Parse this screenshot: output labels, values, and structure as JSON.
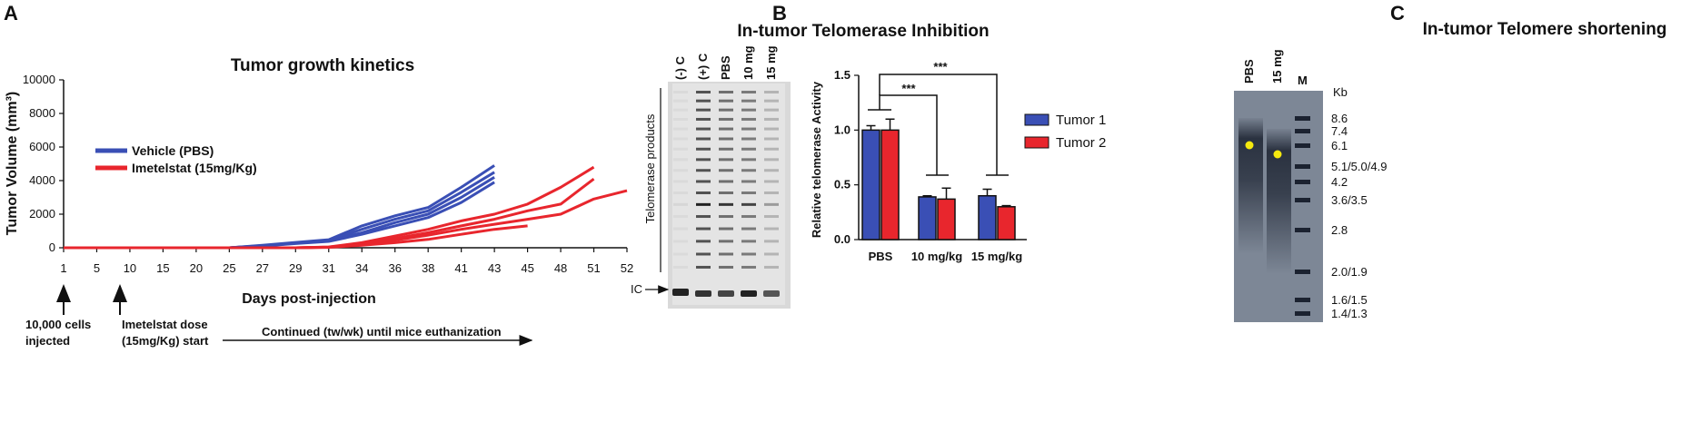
{
  "chart_data": [
    {
      "panel": "A",
      "type": "line",
      "title": "Tumor growth kinetics",
      "xlabel": "Days post-injection",
      "ylabel": "Tumor Volume (mm³)",
      "ylim": [
        0,
        10000
      ],
      "yticks": [
        0,
        2000,
        4000,
        6000,
        8000,
        10000
      ],
      "categories": [
        "1",
        "5",
        "10",
        "15",
        "20",
        "25",
        "27",
        "29",
        "31",
        "34",
        "36",
        "38",
        "41",
        "43",
        "45",
        "48",
        "51",
        "52"
      ],
      "series": [
        {
          "name": "Vehicle (PBS)",
          "color": "#3a4fb5",
          "lines": [
            [
              0,
              0,
              0,
              0,
              0,
              0,
              150,
              320,
              480,
              1300,
              1900,
              2400,
              3600,
              4900
            ],
            [
              0,
              0,
              0,
              0,
              0,
              0,
              130,
              290,
              430,
              1100,
              1700,
              2200,
              3300,
              4500
            ],
            [
              0,
              0,
              0,
              0,
              0,
              0,
              110,
              270,
              400,
              900,
              1500,
              2000,
              3000,
              4200
            ],
            [
              0,
              0,
              0,
              0,
              0,
              0,
              100,
              250,
              380,
              800,
              1300,
              1800,
              2700,
              3900
            ]
          ]
        },
        {
          "name": "Imetelstat (15mg/Kg)",
          "color": "#e8262d",
          "lines": [
            [
              0,
              0,
              0,
              0,
              0,
              0,
              0,
              0,
              50,
              300,
              700,
              1100,
              1600,
              2000,
              2600,
              3600,
              4800,
              null
            ],
            [
              0,
              0,
              0,
              0,
              0,
              0,
              0,
              0,
              40,
              250,
              550,
              900,
              1300,
              1700,
              2200,
              2600,
              4100,
              null
            ],
            [
              0,
              0,
              0,
              0,
              0,
              0,
              0,
              0,
              30,
              200,
              450,
              750,
              1100,
              1400,
              1700,
              2000,
              2900,
              3400
            ],
            [
              0,
              0,
              0,
              0,
              0,
              0,
              0,
              0,
              20,
              150,
              300,
              500,
              800,
              1100,
              1300,
              null,
              null,
              null
            ]
          ]
        }
      ],
      "annotations": [
        {
          "at": "1",
          "text": [
            "10,000 cells",
            "injected"
          ]
        },
        {
          "at": "10",
          "text": [
            "Imetelstat dose",
            "(15mg/Kg) start"
          ]
        },
        {
          "text": "Continued (tw/wk) until mice euthanization"
        }
      ]
    },
    {
      "panel": "B",
      "type": "bar",
      "title": "In-tumor Telomerase Inhibition",
      "gel_lanes": [
        "(-) C",
        "(+) C",
        "PBS",
        "10 mg",
        "15 mg"
      ],
      "gel_labels": {
        "products": "Telomerase products",
        "ic": "IC"
      },
      "categories": [
        "PBS",
        "10 mg/kg",
        "15 mg/kg"
      ],
      "ylabel": "Relative telomerase Activity",
      "ylim": [
        0,
        1.5
      ],
      "yticks": [
        "0.0",
        "0.5",
        "1.0",
        "1.5"
      ],
      "series": [
        {
          "name": "Tumor 1",
          "color": "#3a4fb5",
          "values": [
            1.0,
            0.39,
            0.4
          ],
          "errors": [
            0.04,
            0.01,
            0.06
          ]
        },
        {
          "name": "Tumor 2",
          "color": "#e8262d",
          "values": [
            1.0,
            0.37,
            0.3
          ],
          "errors": [
            0.1,
            0.1,
            0.01
          ]
        }
      ],
      "significance": [
        "***",
        "***"
      ]
    },
    {
      "panel": "C",
      "type": "other",
      "title": "In-tumor Telomere shortening",
      "lanes": [
        "PBS",
        "15 mg",
        "M"
      ],
      "size_unit": "Kb",
      "markers": [
        "8.6",
        "7.4",
        "6.1",
        "5.1/5.0/4.9",
        "4.2",
        "3.6/3.5",
        "2.8",
        "2.0/1.9",
        "1.6/1.5",
        "1.4/1.3"
      ]
    }
  ],
  "panels": {
    "a": "A",
    "b": "B",
    "c": "C"
  }
}
